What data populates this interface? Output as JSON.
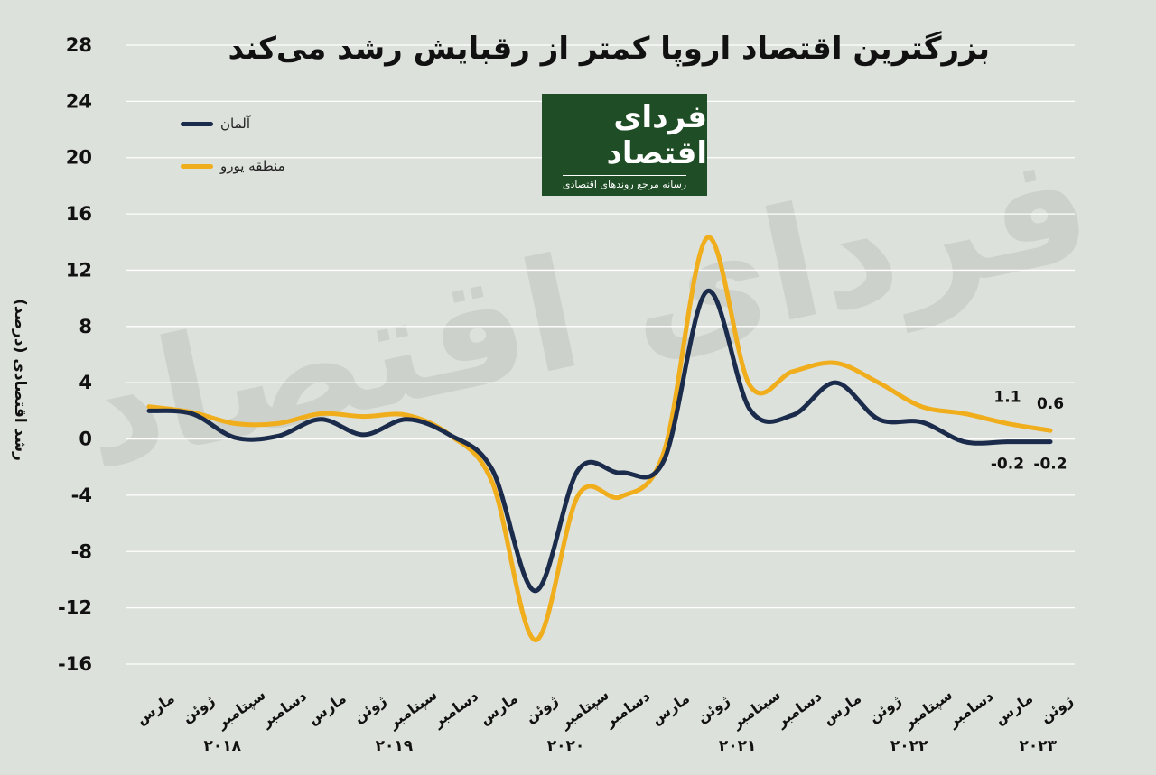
{
  "title": "بزرگترین اقتصاد اروپا کمتر از رقبایش رشد می‌کند",
  "logo": {
    "name": "فردای اقتصاد",
    "tagline": "رسانه مرجع روندهای اقتصادی"
  },
  "chart_data": {
    "type": "line",
    "title": "بزرگترین اقتصاد اروپا کمتر از رقبایش رشد می‌کند",
    "ylabel": "رشد اقتصادی (درصد)",
    "xlabel": "",
    "ylim": [
      -16,
      28
    ],
    "yticks": [
      28,
      24,
      20,
      16,
      12,
      8,
      4,
      0,
      -4,
      -8,
      -12,
      -16
    ],
    "ytick_labels": [
      "28",
      "24",
      "20",
      "16",
      "12",
      "8",
      "4",
      "0",
      "-4",
      "-8",
      "-12",
      "-16"
    ],
    "grid": true,
    "legend_position": "top-left",
    "categories": [
      "مارس",
      "ژوئن",
      "سپتامبر",
      "دسامبر",
      "مارس",
      "ژوئن",
      "سپتامبر",
      "دسامبر",
      "مارس",
      "ژوئن",
      "سپتامبر",
      "دسامبر",
      "مارس",
      "ژوئن",
      "سپتامبر",
      "دسامبر",
      "مارس",
      "ژوئن",
      "سپتامبر",
      "دسامبر",
      "مارس",
      "ژوئن"
    ],
    "years": [
      {
        "label": "۲۰۱۸",
        "from": 0,
        "to": 3
      },
      {
        "label": "۲۰۱۹",
        "from": 4,
        "to": 7
      },
      {
        "label": "۲۰۲۰",
        "from": 8,
        "to": 11
      },
      {
        "label": "۲۰۲۱",
        "from": 12,
        "to": 15
      },
      {
        "label": "۲۰۲۲",
        "from": 16,
        "to": 19
      },
      {
        "label": "۲۰۲۳",
        "from": 20,
        "to": 21
      }
    ],
    "series": [
      {
        "name": "آلمان",
        "color": "#1b2b4b",
        "values": [
          2.0,
          1.8,
          0.1,
          0.2,
          1.4,
          0.3,
          1.4,
          0.3,
          -2.2,
          -10.8,
          -2.2,
          -2.4,
          -1.5,
          10.5,
          2.1,
          1.7,
          4.0,
          1.4,
          1.2,
          -0.2,
          -0.2,
          -0.2
        ]
      },
      {
        "name": "منطقه یورو",
        "color": "#f0ad1c",
        "values": [
          2.3,
          1.9,
          1.1,
          1.1,
          1.8,
          1.6,
          1.7,
          0.3,
          -3.1,
          -14.3,
          -4.0,
          -4.1,
          -0.9,
          14.3,
          3.8,
          4.8,
          5.4,
          4.0,
          2.3,
          1.8,
          1.1,
          0.6
        ]
      }
    ],
    "annotations": [
      {
        "text": "1.1",
        "series": "منطقه یورو",
        "index": 20
      },
      {
        "text": "0.6",
        "series": "منطقه یورو",
        "index": 21
      },
      {
        "text": "-0.2",
        "series": "آلمان",
        "index": 20
      },
      {
        "text": "-0.2",
        "series": "آلمان",
        "index": 21
      }
    ]
  }
}
